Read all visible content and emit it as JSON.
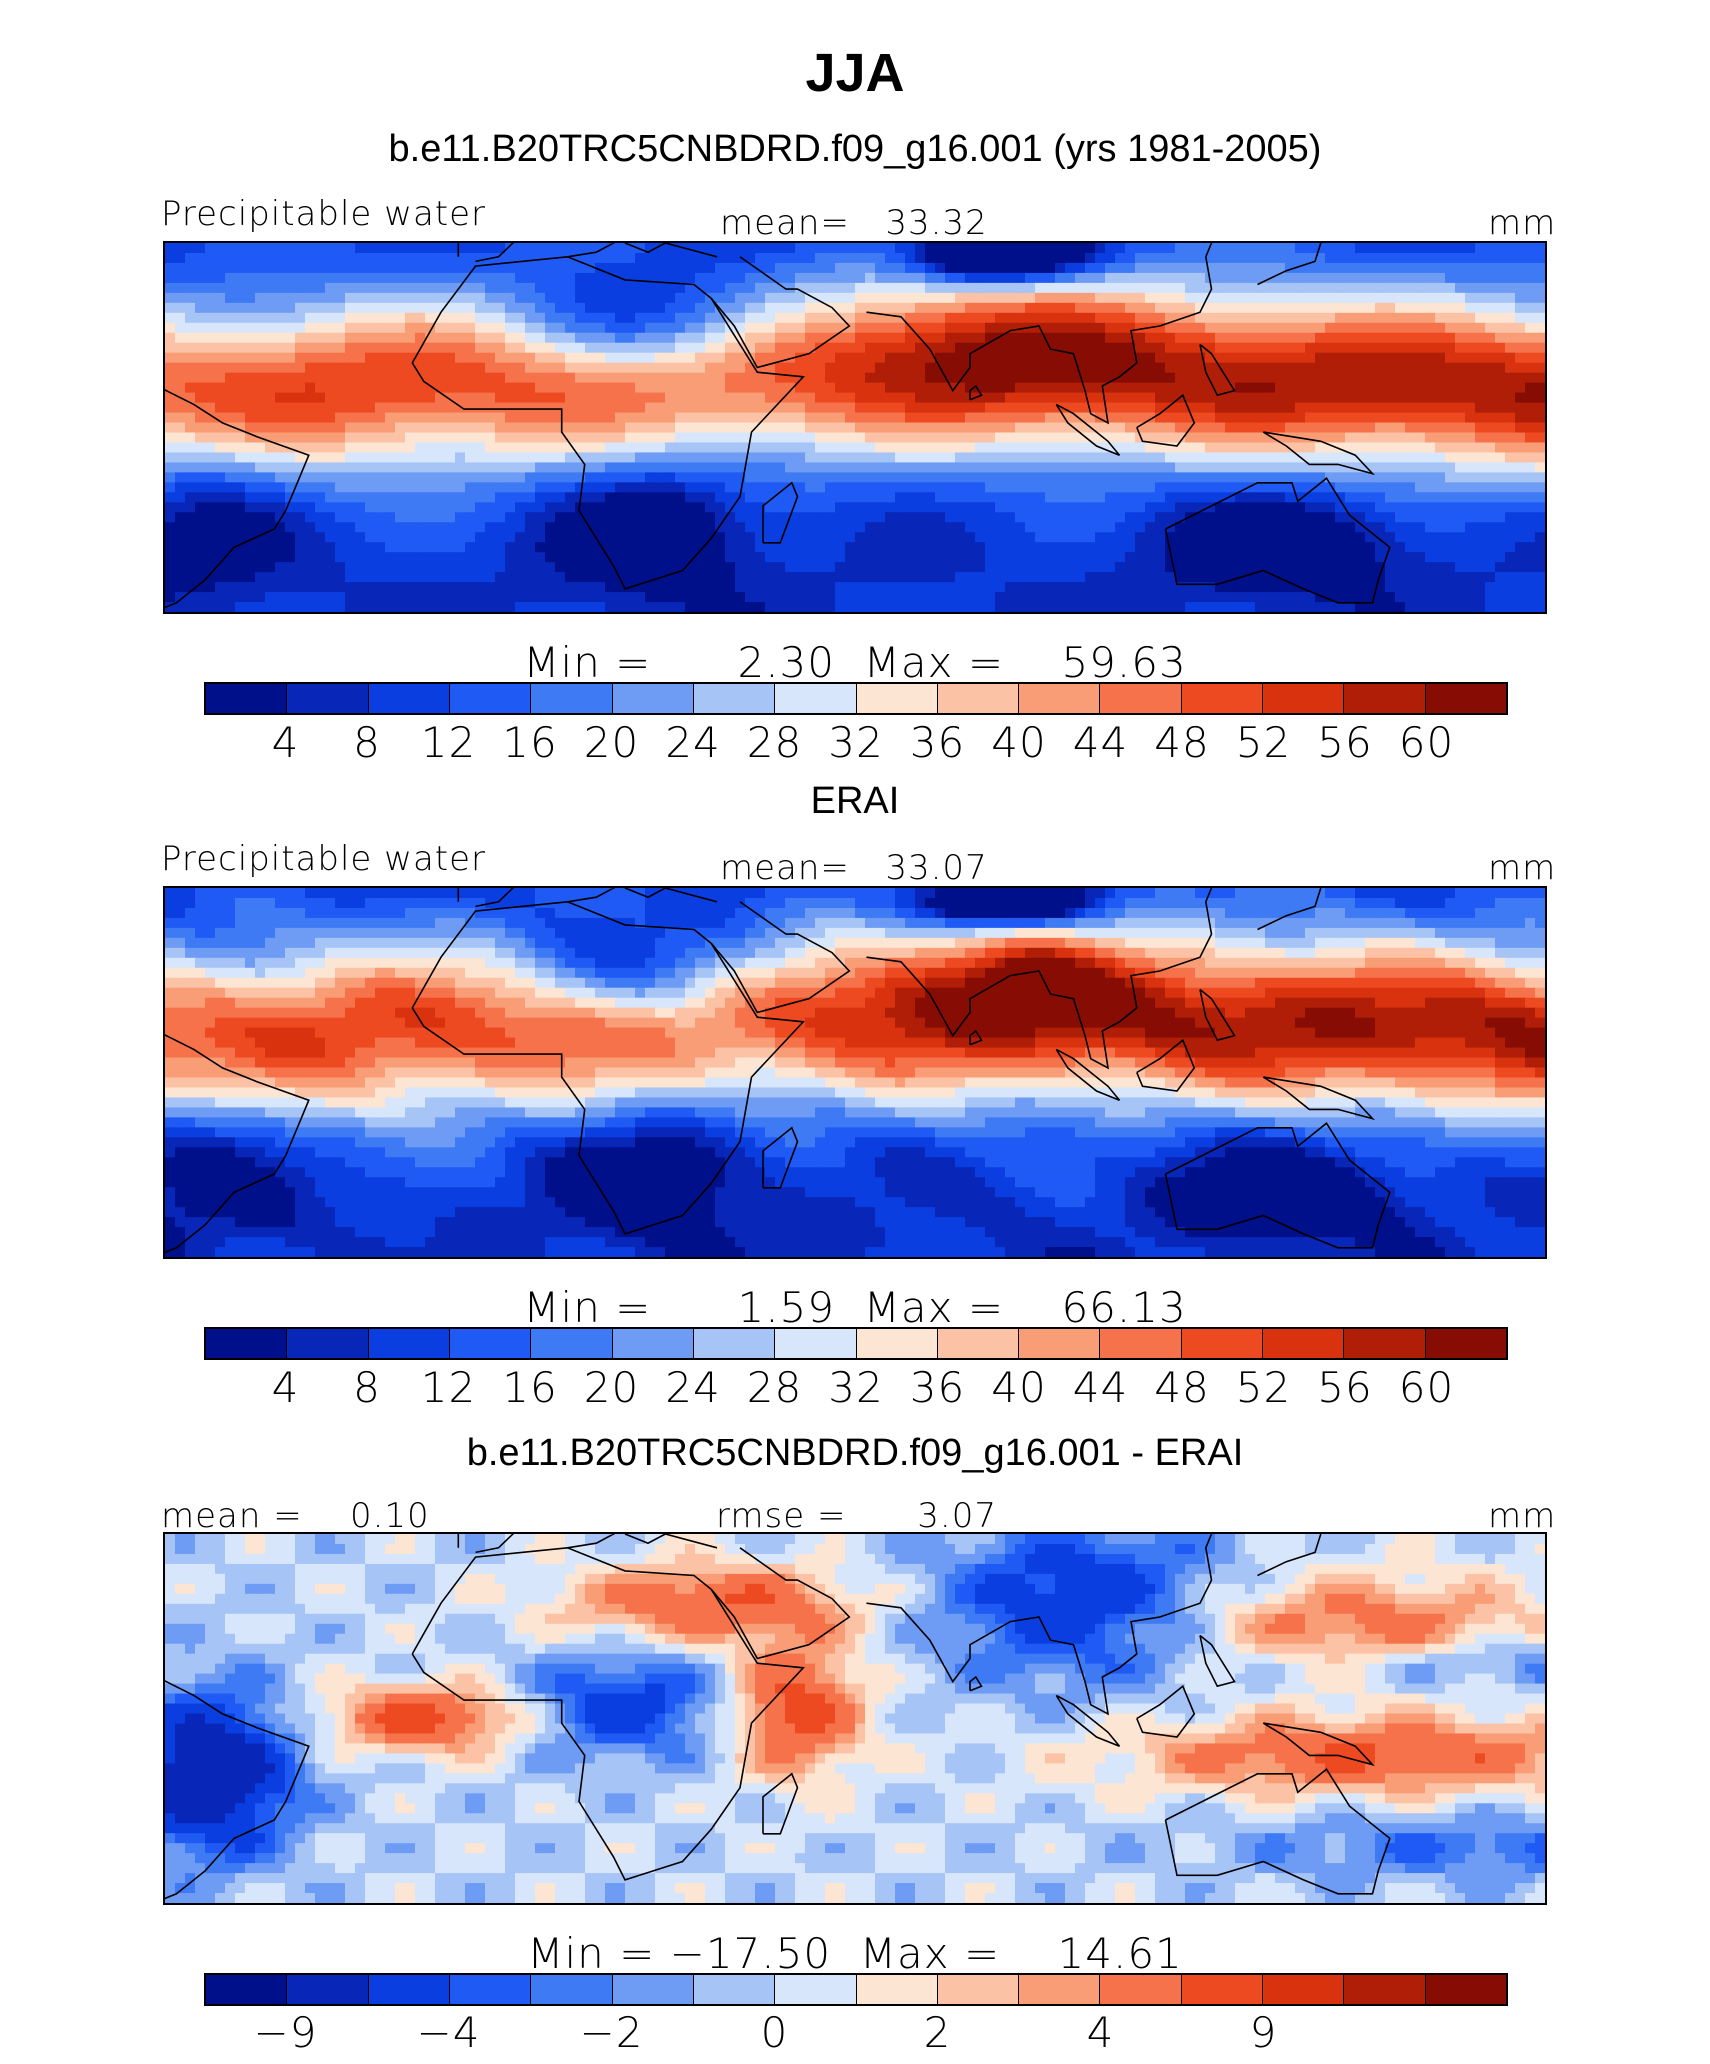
{
  "title": "JJA",
  "colors": [
    "#00108a",
    "#0826b8",
    "#0b3ee0",
    "#1f5af5",
    "#3f7af5",
    "#6e9cf5",
    "#a7c4f7",
    "#d7e6fb",
    "#fde5d3",
    "#fbc2a5",
    "#f99d76",
    "#f5724a",
    "#ee4a22",
    "#d8320f",
    "#b01e08",
    "#870c03"
  ],
  "panels": [
    {
      "subtitle": "b.e11.B20TRC5CNBDRD.f09_g16.001 (yrs 1981-2005)",
      "left_label": "Precipitable water",
      "center_label": "mean=   33.32",
      "right_label": "mm",
      "minmax": "Min =      2.30  Max =    59.63",
      "ticks": [
        "4",
        "8",
        "12",
        "16",
        "20",
        "24",
        "28",
        "32",
        "36",
        "40",
        "44",
        "48",
        "52",
        "56",
        "60"
      ],
      "field": "model"
    },
    {
      "subtitle": "ERAI",
      "left_label": "Precipitable water",
      "center_label": "mean=   33.07",
      "right_label": "mm",
      "minmax": "Min =      1.59  Max =    66.13",
      "ticks": [
        "4",
        "8",
        "12",
        "16",
        "20",
        "24",
        "28",
        "32",
        "36",
        "40",
        "44",
        "48",
        "52",
        "56",
        "60"
      ],
      "field": "obs"
    },
    {
      "subtitle": "b.e11.B20TRC5CNBDRD.f09_g16.001 - ERAI",
      "left_label": "mean =    0.10",
      "center_label": "rmse =      3.07",
      "right_label": "mm",
      "minmax": "Min = −17.50  Max =    14.61",
      "ticks": [
        "−9",
        "",
        "−4",
        "",
        "−2",
        "",
        "0",
        "",
        "2",
        "",
        "4",
        "",
        "9",
        ""
      ],
      "field": "diff"
    }
  ]
}
